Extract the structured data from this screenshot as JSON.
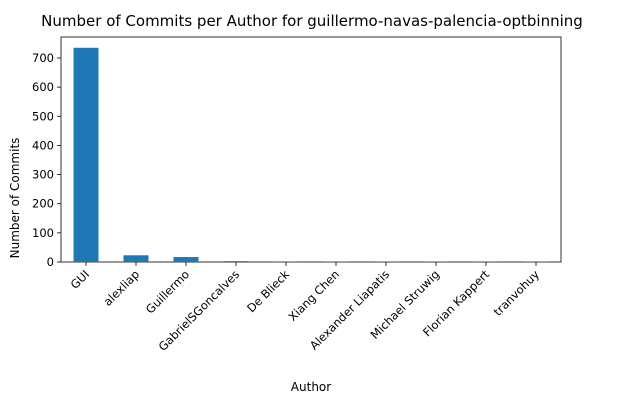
{
  "chart_data": {
    "type": "bar",
    "title": "Number of Commits per Author for guillermo-navas-palencia-optbinning",
    "xlabel": "Author",
    "ylabel": "Number of Commits",
    "categories": [
      "GUI",
      "alexliap",
      "Guillermo",
      "GabrielSGoncalves",
      "De Blieck",
      "Xiang Chen",
      "Alexander Liapatis",
      "Michael Struwig",
      "Florian Kappert",
      "tranvohuy"
    ],
    "values": [
      735,
      23,
      17,
      3,
      2,
      1,
      1,
      1,
      1,
      1
    ],
    "ylim": [
      0,
      772
    ],
    "yticks": [
      0,
      100,
      200,
      300,
      400,
      500,
      600,
      700
    ],
    "bar_color": "#1f77b4",
    "grid": false,
    "legend": "none"
  }
}
